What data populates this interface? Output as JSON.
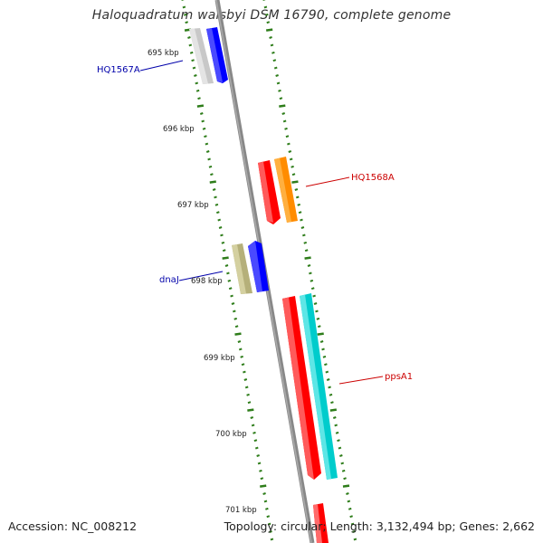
{
  "title": "Haloquadratum walsbyi DSM 16790, complete genome",
  "accession": "Accession: NC_008212",
  "summary": "Topology: circular; Length: 3,132,494 bp; Genes: 2,662",
  "ticks": [
    "695 kbp",
    "696 kbp",
    "697 kbp",
    "698 kbp",
    "699 kbp",
    "700 kbp",
    "701 kbp"
  ],
  "genes": [
    {
      "name": "HQ1567A",
      "color": "#0000aa"
    },
    {
      "name": "HQ1568A",
      "color": "#cc0000"
    },
    {
      "name": "dnaJ",
      "color": "#0000aa"
    },
    {
      "name": "ppsA1",
      "color": "#cc0000"
    }
  ],
  "colors": {
    "backbone": "#888888",
    "tick": "#2e7d1a",
    "feature_grey": "#c8c8c8",
    "feature_blue": "#0000ff",
    "feature_red": "#ff0000",
    "feature_orange": "#ff8c00",
    "feature_olive": "#b5b07a",
    "feature_cyan": "#00cccc"
  }
}
